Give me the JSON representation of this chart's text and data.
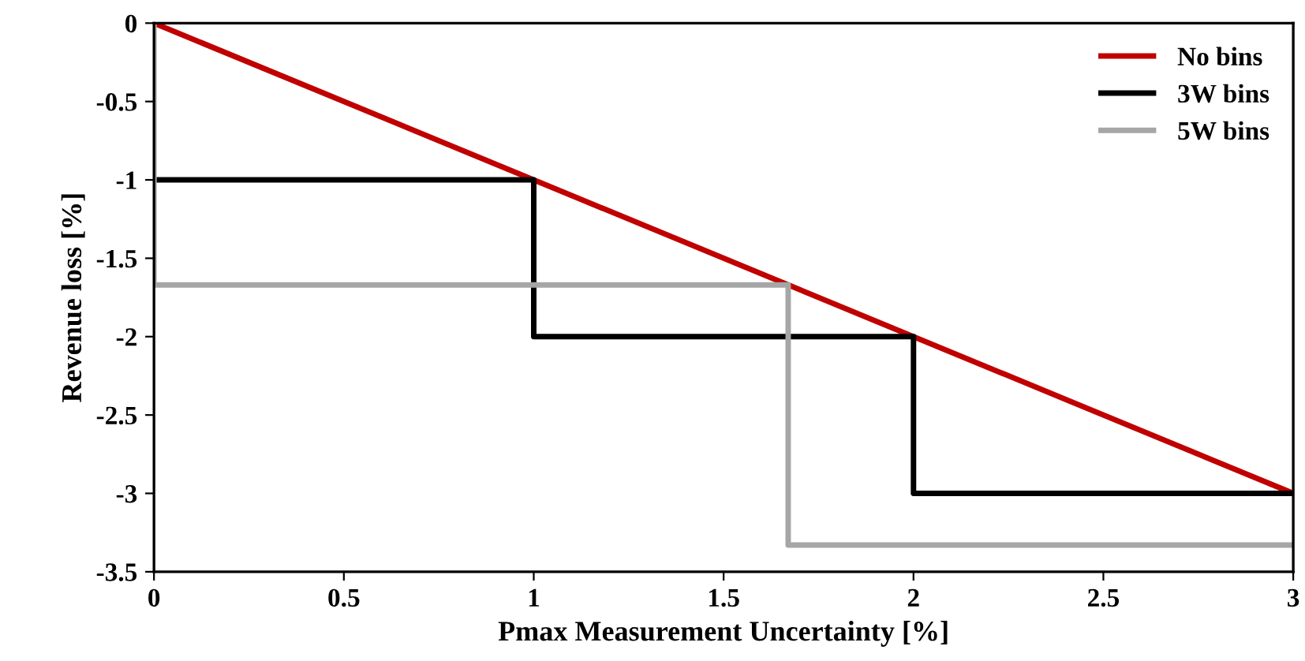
{
  "chart_data": {
    "type": "line",
    "xlabel": "Pmax Measurement Uncertainty [%]",
    "ylabel": "Revenue loss [%]",
    "series": [
      {
        "name": "No bins",
        "color": "#c00000",
        "x": [
          0,
          3
        ],
        "values": [
          0,
          -3
        ]
      },
      {
        "name": "3W bins",
        "color": "#000000",
        "x": [
          0,
          1,
          1,
          2,
          2,
          3
        ],
        "values": [
          -1,
          -1,
          -2,
          -2,
          -3,
          -3
        ]
      },
      {
        "name": "5W bins",
        "color": "#a6a6a6",
        "x": [
          0,
          0,
          1.67,
          1.67,
          3
        ],
        "values": [
          0,
          -1.67,
          -1.67,
          -3.33,
          -3.33
        ]
      }
    ],
    "xlim": [
      0,
      3
    ],
    "xticks": [
      0,
      0.5,
      1,
      1.5,
      2,
      2.5,
      3
    ],
    "ylim": [
      -3.5,
      0
    ],
    "yticks": [
      -3.5,
      -3,
      -2.5,
      -2,
      -1.5,
      -1,
      -0.5,
      0
    ],
    "grid": false,
    "legend": "top right",
    "marker": "none",
    "line_style": "solid"
  }
}
